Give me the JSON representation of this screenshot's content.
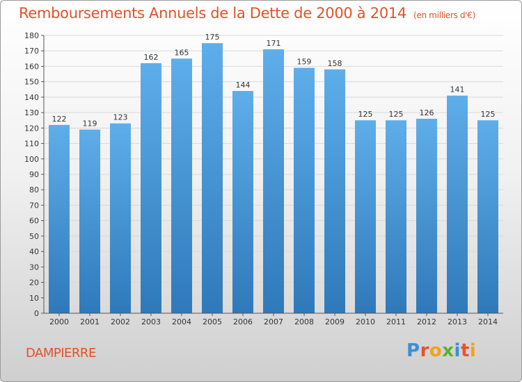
{
  "title": "Remboursements Annuels de la Dette de 2000 à 2014",
  "unit_note": "(en milliers d'€)",
  "commune": "DAMPIERRE",
  "logo": {
    "text": "Proxiti",
    "letters": [
      {
        "ch": "P",
        "color": "#3a8fd6"
      },
      {
        "ch": "r",
        "color": "#e8542a"
      },
      {
        "ch": "o",
        "color": "#f2a21a"
      },
      {
        "ch": "x",
        "color": "#5bb131"
      },
      {
        "ch": "i",
        "color": "#3a8fd6"
      },
      {
        "ch": "t",
        "color": "#e8542a"
      },
      {
        "ch": "i",
        "color": "#f2a21a"
      }
    ]
  },
  "colors": {
    "bar_top": "#5eaeea",
    "bar_bottom": "#2f79ba",
    "title": "#e0522a",
    "grid": "#d9d9d9"
  },
  "chart_data": {
    "type": "bar",
    "title": "Remboursements Annuels de la Dette de 2000 à 2014",
    "categories": [
      "2000",
      "2001",
      "2002",
      "2003",
      "2004",
      "2005",
      "2006",
      "2007",
      "2008",
      "2009",
      "2010",
      "2011",
      "2012",
      "2013",
      "2014"
    ],
    "values": [
      122,
      119,
      123,
      162,
      165,
      175,
      144,
      171,
      159,
      158,
      125,
      125,
      126,
      141,
      125
    ],
    "ylim": [
      0,
      180
    ],
    "yticks": [
      0,
      10,
      20,
      30,
      40,
      50,
      60,
      70,
      80,
      90,
      100,
      110,
      120,
      130,
      140,
      150,
      160,
      170,
      180
    ],
    "grid": true
  }
}
